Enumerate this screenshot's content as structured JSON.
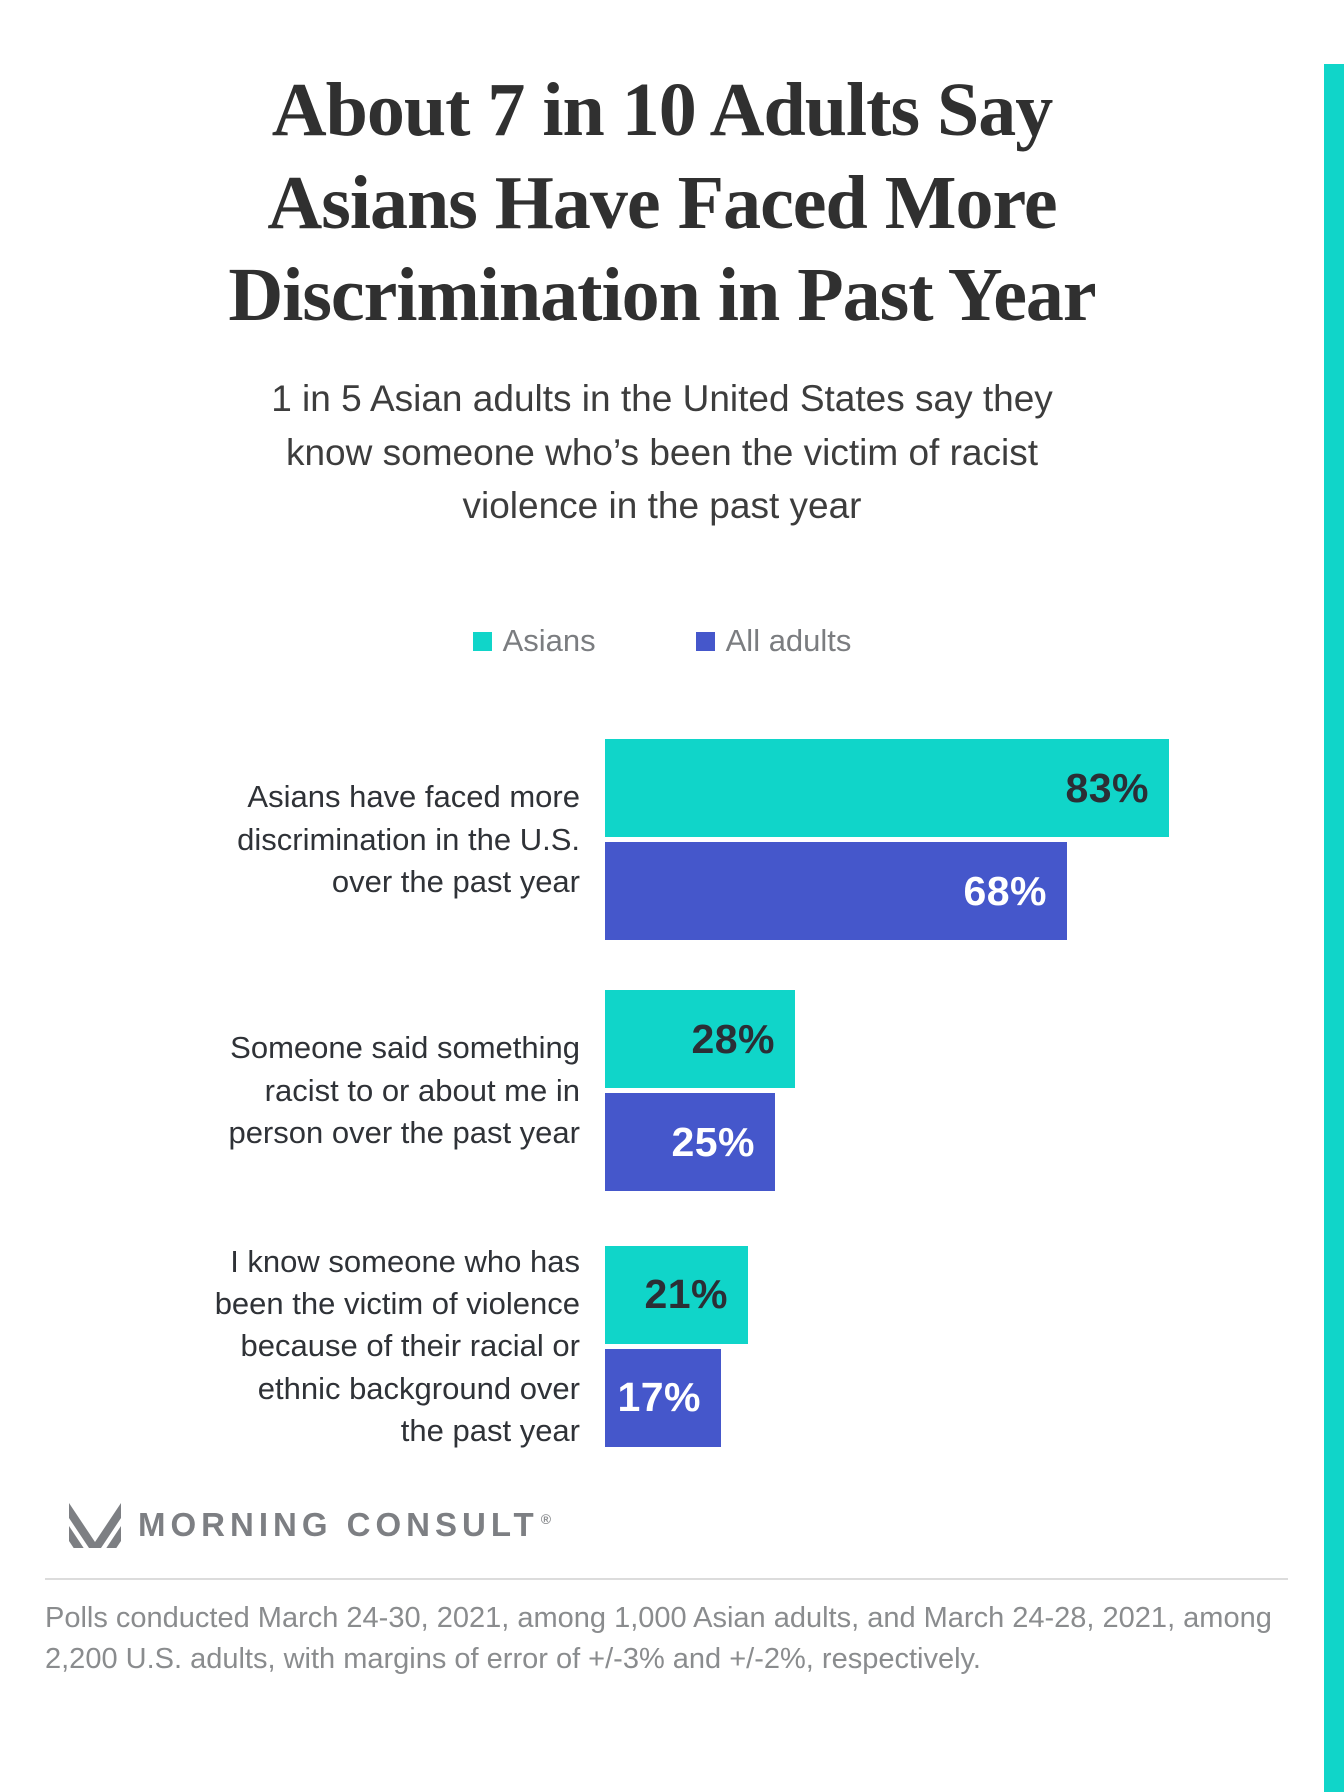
{
  "page": {
    "title": "About 7 in 10 Adults Say\nAsians Have Faced More\nDiscrimination in Past Year",
    "subtitle": "1 in 5 Asian adults in the United States say they\nknow someone who’s been the victim of racist\nviolence in the past year"
  },
  "colors": {
    "accent_teal": "#10d5c9",
    "brand_blue": "#4557cb",
    "value_label_on_teal": "#2b2e35",
    "value_label_on_blue": "#ffffff"
  },
  "legend": [
    {
      "label": "Asians",
      "color": "#10d5c9"
    },
    {
      "label": "All adults",
      "color": "#4557cb"
    }
  ],
  "chart_data": {
    "type": "bar",
    "orientation": "horizontal",
    "title": "About 7 in 10 Adults Say Asians Have Faced More Discrimination in Past Year",
    "subtitle": "1 in 5 Asian adults in the United States say they know someone who’s been the victim of racist violence in the past year",
    "categories": [
      "Asians have faced more\ndiscrimination in the U.S.\nover the past year",
      "Someone said something\nracist to or about me in\nperson over the past year",
      "I know someone who has\nbeen the victim of violence\nbecause of their racial or\nethnic background over\nthe past year"
    ],
    "series": [
      {
        "name": "Asians",
        "color": "#10d5c9",
        "label_color": "#2b2e35",
        "values": [
          83,
          28,
          21
        ]
      },
      {
        "name": "All adults",
        "color": "#4557cb",
        "label_color": "#ffffff",
        "values": [
          68,
          25,
          17
        ]
      }
    ],
    "value_suffix": "%",
    "xlim": [
      0,
      100
    ],
    "grid": false,
    "legend_position": "top-center",
    "value_labels": "inside-end"
  },
  "footer": {
    "logo_text": "MORNING CONSULT",
    "registered_mark": "®",
    "note": "Polls conducted March 24-30, 2021, among 1,000 Asian adults, and March 24-28, 2021, among 2,200 U.S. adults, with margins of error of +/-3% and +/-2%, respectively."
  }
}
